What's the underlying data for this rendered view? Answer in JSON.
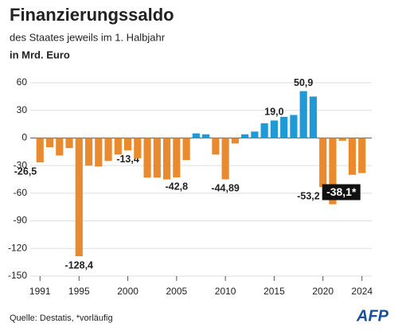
{
  "chart_data": {
    "type": "bar",
    "title": "Finanzierungssaldo",
    "subtitle": "des Staates jeweils im 1. Halbjahr",
    "unit": "in Mrd. Euro",
    "x": [
      1991,
      1992,
      1993,
      1994,
      1995,
      1996,
      1997,
      1998,
      1999,
      2000,
      2001,
      2002,
      2003,
      2004,
      2005,
      2006,
      2007,
      2008,
      2009,
      2010,
      2011,
      2012,
      2013,
      2014,
      2015,
      2016,
      2017,
      2018,
      2019,
      2020,
      2021,
      2022,
      2023,
      2024
    ],
    "values": [
      -26.5,
      -10,
      -19,
      -11,
      -128.4,
      -30,
      -31,
      -25,
      -18,
      -13.4,
      -22,
      -43,
      -43,
      -45,
      -42.8,
      -24,
      5,
      4,
      -18,
      -44.89,
      -6,
      4,
      7,
      16,
      19.0,
      23,
      25,
      50.9,
      45,
      -53.2,
      -72,
      -3,
      -40,
      -38.1
    ],
    "value_labels": [
      "-26,5",
      null,
      null,
      null,
      "-128,4",
      null,
      null,
      null,
      null,
      "-13,4",
      null,
      null,
      null,
      null,
      "-42,8",
      null,
      null,
      null,
      null,
      "-44,89",
      null,
      null,
      null,
      null,
      "19,0",
      null,
      null,
      "50,9",
      null,
      "-53,2",
      null,
      null,
      null,
      "-38,1*"
    ],
    "colors": {
      "positive": "#1e9ad6",
      "negative": "#ea8a2f"
    },
    "xlim": [
      1990,
      2025
    ],
    "xticks": [
      1991,
      1995,
      2000,
      2005,
      2010,
      2015,
      2020,
      2024
    ],
    "ylim": [
      -150,
      60
    ],
    "yticks": [
      60,
      30,
      0,
      -30,
      -60,
      -90,
      -120,
      -150
    ],
    "grid": true,
    "source": "Quelle: Destatis, *vorläufig",
    "logo": "AFP"
  }
}
